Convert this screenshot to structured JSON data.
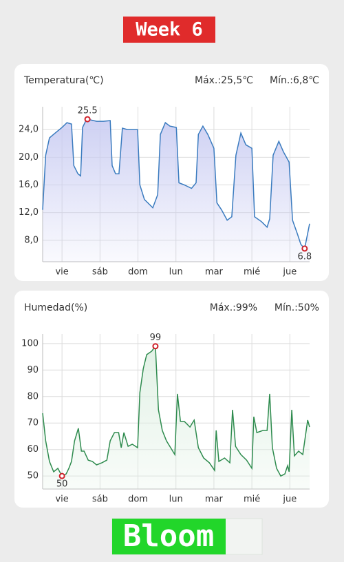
{
  "header": {
    "title": "Week 6"
  },
  "footer": {
    "title": "Bloom"
  },
  "chart_data": [
    {
      "type": "line",
      "title": "Temperatura(℃)",
      "max_label": "Máx.:25,5℃",
      "min_label": "Mín.:6,8℃",
      "color": "#3a7bbf",
      "fill": "#c9ccf2",
      "grid": true,
      "xlim": [
        -0.51,
        6.52
      ],
      "xticks": [
        {
          "value": 0,
          "label": "vie"
        },
        {
          "value": 1,
          "label": "sáb"
        },
        {
          "value": 2,
          "label": "dom"
        },
        {
          "value": 3,
          "label": "lun"
        },
        {
          "value": 4,
          "label": "mar"
        },
        {
          "value": 5,
          "label": "mié"
        },
        {
          "value": 6,
          "label": "jue"
        }
      ],
      "ylim": [
        4.9,
        27.3
      ],
      "yticks": [
        {
          "value": 8,
          "label": "8,0"
        },
        {
          "value": 12,
          "label": "12,0"
        },
        {
          "value": 16,
          "label": "16,0"
        },
        {
          "value": 20,
          "label": "20,0"
        },
        {
          "value": 24,
          "label": "24,0"
        }
      ],
      "x": [
        -0.51,
        -0.43,
        -0.33,
        -0.18,
        0,
        0.13,
        0.25,
        0.31,
        0.42,
        0.49,
        0.54,
        0.63,
        0.67,
        0.91,
        1.09,
        1.27,
        1.32,
        1.41,
        1.5,
        1.59,
        1.72,
        1.99,
        2.05,
        2.17,
        2.39,
        2.52,
        2.59,
        2.72,
        2.84,
        3.01,
        3.08,
        3.22,
        3.41,
        3.53,
        3.59,
        3.71,
        3.84,
        4.0,
        4.08,
        4.2,
        4.35,
        4.47,
        4.58,
        4.71,
        4.84,
        5.0,
        5.07,
        5.25,
        5.4,
        5.47,
        5.56,
        5.71,
        5.83,
        5.98,
        6.07,
        6.2,
        6.29,
        6.39,
        6.52
      ],
      "values": [
        12.4,
        20.3,
        22.8,
        23.5,
        24.3,
        25.0,
        24.8,
        18.8,
        17.6,
        17.3,
        24.3,
        25.3,
        25.5,
        25.2,
        25.2,
        25.3,
        18.8,
        17.6,
        17.6,
        24.2,
        24.0,
        24.0,
        16.0,
        13.9,
        12.7,
        14.6,
        23.3,
        25.0,
        24.5,
        24.3,
        16.3,
        16.0,
        15.5,
        16.3,
        23.3,
        24.5,
        23.3,
        21.3,
        13.4,
        12.4,
        10.9,
        11.4,
        20.3,
        23.5,
        21.8,
        21.3,
        11.4,
        10.7,
        9.9,
        11.1,
        20.3,
        22.3,
        20.8,
        19.3,
        10.9,
        8.9,
        7.4,
        6.8,
        10.4
      ],
      "annotations": [
        {
          "x": 0.67,
          "y": 25.5,
          "position": "above"
        },
        {
          "x": 6.39,
          "y": 6.8,
          "position": "below"
        }
      ]
    },
    {
      "type": "line",
      "title": "Humedad(%)",
      "max_label": "Máx.:99%",
      "min_label": "Mín.:50%",
      "color": "#2e8b4e",
      "fill": "#dff0e3",
      "grid": true,
      "xlim": [
        -0.51,
        6.52
      ],
      "xticks": [
        {
          "value": 0,
          "label": "vie"
        },
        {
          "value": 1,
          "label": "sáb"
        },
        {
          "value": 2,
          "label": "dom"
        },
        {
          "value": 3,
          "label": "lun"
        },
        {
          "value": 4,
          "label": "mar"
        },
        {
          "value": 5,
          "label": "mié"
        },
        {
          "value": 6,
          "label": "jue"
        }
      ],
      "ylim": [
        45.1,
        103.6
      ],
      "yticks": [
        50,
        60,
        70,
        80,
        90,
        100
      ],
      "x": [
        -0.51,
        -0.43,
        -0.33,
        -0.22,
        -0.11,
        0,
        0.11,
        0.18,
        0.25,
        0.33,
        0.43,
        0.51,
        0.58,
        0.69,
        0.8,
        0.91,
        1.05,
        1.18,
        1.27,
        1.38,
        1.49,
        1.56,
        1.63,
        1.74,
        1.85,
        1.99,
        2.05,
        2.14,
        2.23,
        2.36,
        2.46,
        2.54,
        2.64,
        2.75,
        2.86,
        2.97,
        3.04,
        3.12,
        3.22,
        3.37,
        3.48,
        3.59,
        3.73,
        3.88,
        4.02,
        4.06,
        4.13,
        4.28,
        4.42,
        4.49,
        4.57,
        4.71,
        4.86,
        5.0,
        5.05,
        5.13,
        5.29,
        5.4,
        5.47,
        5.54,
        5.65,
        5.76,
        5.87,
        5.94,
        5.98,
        6.05,
        6.12,
        6.23,
        6.34,
        6.47,
        6.52
      ],
      "values": [
        73.7,
        63.3,
        55.5,
        51.6,
        52.9,
        50,
        50.8,
        52.9,
        55.5,
        63.3,
        68.0,
        59.4,
        59.4,
        56.0,
        55.5,
        54.2,
        55.0,
        56.0,
        63.3,
        66.4,
        66.4,
        60.7,
        66.4,
        61.2,
        62.0,
        60.7,
        81.5,
        90.6,
        95.8,
        97.1,
        99,
        75.0,
        67.2,
        63.3,
        60.7,
        58.1,
        81.0,
        70.6,
        70.6,
        68.5,
        71.1,
        60.7,
        56.8,
        55.0,
        52.1,
        67.2,
        55.5,
        56.8,
        55.0,
        75.0,
        61.2,
        58.1,
        56.0,
        52.9,
        72.4,
        66.4,
        67.2,
        67.2,
        81.0,
        60.7,
        52.9,
        50.0,
        50.8,
        53.9,
        51.6,
        75.0,
        57.6,
        59.4,
        58.1,
        71.1,
        68.5
      ],
      "annotations": [
        {
          "x": 2.46,
          "y": 99,
          "position": "above"
        },
        {
          "x": 0,
          "y": 50,
          "position": "below"
        }
      ]
    }
  ]
}
